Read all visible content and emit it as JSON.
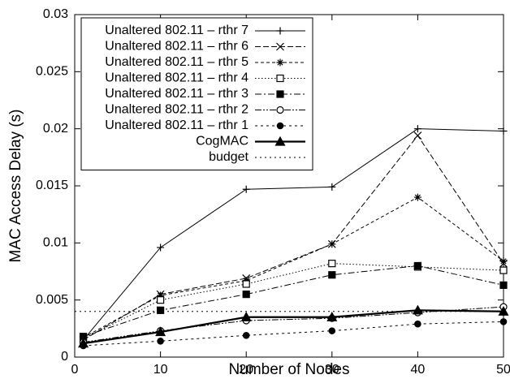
{
  "chart_data": {
    "type": "line",
    "xlabel": "Number of Nodes",
    "ylabel": "MAC Access Delay (s)",
    "x": [
      1,
      10,
      20,
      30,
      40,
      50
    ],
    "xlim": [
      0,
      50
    ],
    "xticks": [
      0,
      10,
      20,
      30,
      40,
      50
    ],
    "ylim": [
      0,
      0.03
    ],
    "yticks": [
      0,
      0.005,
      0.01,
      0.015,
      0.02,
      0.025,
      0.03
    ],
    "legend": "upper left",
    "series": [
      {
        "name": "Unaltered 802.11 – rthr 7",
        "color": "#000000",
        "values": [
          0.0015,
          0.0096,
          0.0147,
          0.0149,
          0.02,
          0.0198
        ]
      },
      {
        "name": "Unaltered 802.11 – rthr 6",
        "color": "#000000",
        "values": [
          0.0015,
          0.0055,
          0.0069,
          0.0099,
          0.0194,
          0.0082
        ]
      },
      {
        "name": "Unaltered 802.11 – rthr 5",
        "color": "#000000",
        "values": [
          0.0017,
          0.0054,
          0.0067,
          0.0099,
          0.014,
          0.0084
        ]
      },
      {
        "name": "Unaltered 802.11 – rthr 4",
        "color": "#000000",
        "values": [
          0.0016,
          0.005,
          0.0064,
          0.0082,
          0.0079,
          0.0076
        ]
      },
      {
        "name": "Unaltered 802.11 – rthr 3",
        "color": "#000000",
        "values": [
          0.0018,
          0.0041,
          0.0055,
          0.0072,
          0.008,
          0.0063
        ]
      },
      {
        "name": "Unaltered 802.11 – rthr 2",
        "color": "#000000",
        "values": [
          0.0013,
          0.0023,
          0.0032,
          0.0034,
          0.0039,
          0.0044
        ]
      },
      {
        "name": "Unaltered 802.11 – rthr 1",
        "color": "#000000",
        "values": [
          0.001,
          0.0014,
          0.0019,
          0.0023,
          0.0029,
          0.0031
        ]
      },
      {
        "name": "CogMAC",
        "color": "#000000",
        "values": [
          0.0012,
          0.0022,
          0.0035,
          0.0035,
          0.0041,
          0.004
        ]
      },
      {
        "name": "budget",
        "color": "#000000",
        "x": [
          0,
          50
        ],
        "values": [
          0.004,
          0.004
        ]
      }
    ]
  }
}
